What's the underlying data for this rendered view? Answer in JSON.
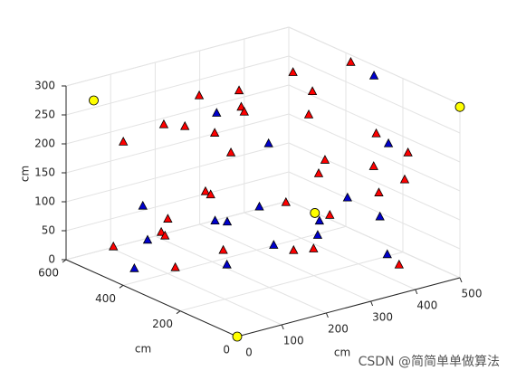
{
  "chart_data": {
    "type": "scatter3d",
    "xlabel": "cm",
    "ylabel": "cm",
    "zlabel": "cm",
    "xlim": [
      0,
      500
    ],
    "ylim": [
      0,
      600
    ],
    "zlim": [
      0,
      300
    ],
    "xticks": [
      0,
      100,
      200,
      300,
      400,
      500
    ],
    "yticks": [
      0,
      200,
      400,
      600
    ],
    "zticks": [
      0,
      50,
      100,
      150,
      200,
      250,
      300
    ],
    "grid": true,
    "series": [
      {
        "color": "#ff0000",
        "marker": "triangle",
        "x": [
          389,
          488,
          259,
          174,
          205,
          181,
          391,
          329,
          124,
          97,
          82,
          67,
          396,
          441,
          105,
          295,
          364,
          229,
          408,
          69,
          48,
          343,
          44,
          53,
          35,
          69,
          183,
          245,
          66,
          165,
          222,
          55,
          400
        ],
        "y": [
          412,
          364,
          398,
          405,
          306,
          258,
          347,
          263,
          451,
          335,
          207,
          504,
          131,
          90,
          186,
          153,
          90,
          72,
          50,
          219,
          168,
          39,
          312,
          517,
          321,
          361,
          115,
          58,
          152,
          60,
          79,
          303,
          57
        ],
        "z": [
          286,
          294,
          284,
          291,
          287,
          294,
          267,
          258,
          241,
          269,
          289,
          211,
          241,
          208,
          255,
          211,
          200,
          219,
          177,
          188,
          198,
          170,
          125,
          30,
          102,
          80,
          169,
          147,
          102,
          102,
          89,
          41,
          30
        ]
      },
      {
        "color": "#0000cc",
        "marker": "triangle",
        "x": [
          478,
          142,
          442,
          187,
          66,
          117,
          270,
          54,
          57,
          216,
          373,
          44,
          137,
          214,
          383,
          54,
          71
        ],
        "y": [
          267,
          294,
          160,
          182,
          434,
          105,
          35,
          162,
          124,
          49,
          82,
          383,
          86,
          52,
          72,
          445,
          147
        ],
        "z": [
          294,
          292,
          208,
          255,
          116,
          177,
          177,
          153,
          159,
          145,
          113,
          73,
          111,
          120,
          48,
          8,
          77
        ]
      },
      {
        "color": "#ffff00",
        "marker": "circle",
        "x": [
          0,
          500,
          30,
          280
        ],
        "y": [
          0,
          0,
          550,
          165
        ],
        "z": [
          0,
          295,
          280,
          120
        ]
      }
    ]
  },
  "watermark": "CSDN @简简单单做算法"
}
